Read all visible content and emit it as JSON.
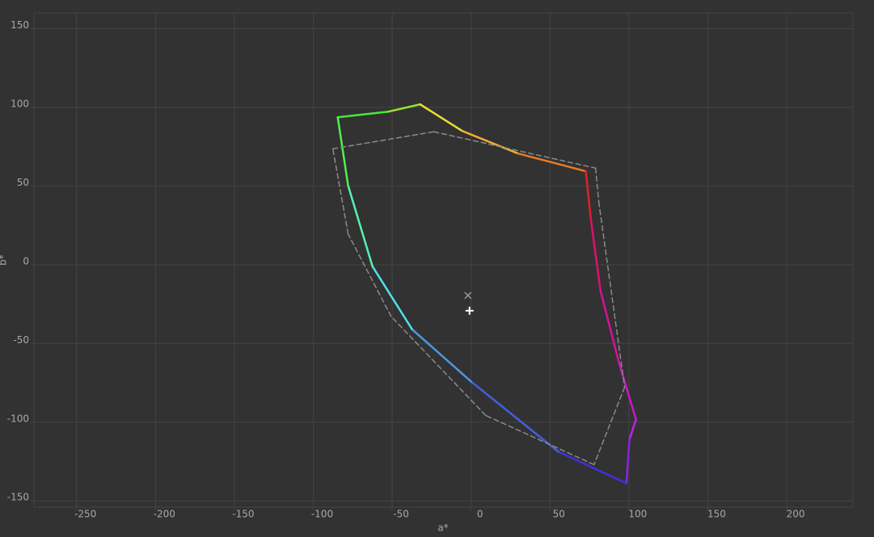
{
  "chart_data": {
    "type": "line",
    "x_label": "a*",
    "y_label": "b*",
    "xlim": [
      -277,
      242
    ],
    "ylim": [
      -154,
      160
    ],
    "xticks": [
      -250,
      -200,
      -150,
      -100,
      -50,
      0,
      50,
      100,
      150,
      200
    ],
    "yticks": [
      -150,
      -100,
      -50,
      0,
      50,
      100,
      150
    ],
    "grid": true,
    "background": "#323232",
    "grid_color": "#444444",
    "text_color": "#a8a8a8",
    "series": [
      {
        "closed": true,
        "x": [
          -84.5,
          -52.3,
          -32.3,
          -5.6,
          29.7,
          72.7,
          75.8,
          82,
          93.8,
          104.5,
          100.4,
          98.4,
          55.3,
          0,
          -37.4,
          -62.5,
          -77.9
        ],
        "values": [
          93.7,
          97.3,
          101.9,
          85,
          70.7,
          59.4,
          29.7,
          -16.4,
          -62.5,
          -98.3,
          -111,
          -138.8,
          -118.8,
          -74.2,
          -41,
          -1,
          50.2
        ],
        "colors": [
          "#48e838",
          "#98e030",
          "#e8e030",
          "#f0b030",
          "#e87a24",
          "#e02028",
          "#e0106a",
          "#d8109c",
          "#c818c8",
          "#c020e8",
          "#8a20e8",
          "#4030e0",
          "#4060e0",
          "#4a98e0",
          "#50e0e8",
          "#58f0b0",
          "#50f050"
        ],
        "width": 2.5
      },
      {
        "closed": true,
        "dash": true,
        "color": "#8a8a8a",
        "x": [
          -87.6,
          -23.6,
          78.9,
          80.9,
          97.3,
          77.9,
          9.2,
          -50.7,
          -77.9
        ],
        "values": [
          73.7,
          84.5,
          61.4,
          40,
          -77.8,
          -127,
          -95.7,
          -32.8,
          19.5
        ],
        "width": 1.5
      }
    ],
    "markers": [
      {
        "symbol": "x",
        "x": -2,
        "y": -19.5,
        "color": "#a0a0a0"
      },
      {
        "symbol": "+",
        "x": -1,
        "y": -29.2,
        "color": "#ffffff"
      }
    ]
  }
}
